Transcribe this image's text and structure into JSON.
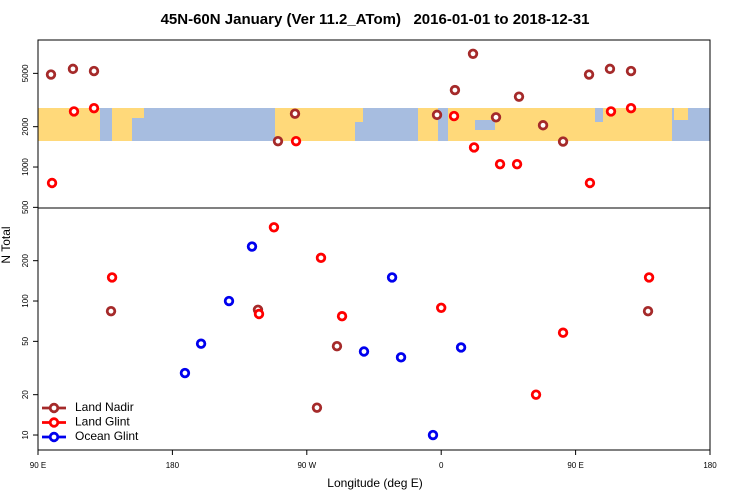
{
  "chart_data": {
    "type": "scatter",
    "title": "45N-60N January (Ver 11.2_ATom)   2016-01-01 to 2018-12-31",
    "xlabel": "Longitude (deg E)",
    "ylabel": "N Total",
    "xlim": [
      -270,
      180
    ],
    "xticks": [
      {
        "value": -270,
        "label": "90 E"
      },
      {
        "value": -180,
        "label": "180"
      },
      {
        "value": -90,
        "label": "90 W"
      },
      0,
      {
        "value": 90,
        "label": "90 E"
      },
      {
        "value": 180,
        "label": "180"
      }
    ],
    "ylim": [
      7.73,
      8870
    ],
    "yscale": "log",
    "yticks": [
      10,
      20,
      50,
      100,
      200,
      500,
      1000,
      2000,
      5000
    ],
    "legend": "lower left",
    "series": [
      {
        "name": "Land Nadir",
        "color": "#a52a2a",
        "x": [
          -261.3,
          -246.6,
          -232.5,
          -221.1,
          -122.7,
          -109.3,
          -97.9,
          -83.2,
          -69.8,
          -2.8,
          9.2,
          21.3,
          36.7,
          52.1,
          68.2,
          81.6,
          99.0,
          113.0,
          127.1,
          138.5
        ],
        "values": [
          4900,
          5400,
          5200,
          84,
          86,
          1560,
          2500,
          16,
          46,
          2450,
          3750,
          7000,
          2350,
          3350,
          2050,
          1550,
          4900,
          5400,
          5200,
          84
        ]
      },
      {
        "name": "Land Glint",
        "color": "#ff0000",
        "x": [
          -260.6,
          -245.9,
          -232.5,
          -220.4,
          -122.0,
          -112.0,
          -97.2,
          -80.5,
          -66.4,
          0,
          8.6,
          22.0,
          39.4,
          50.8,
          63.5,
          81.6,
          99.6,
          113.7,
          127.1,
          139.2
        ],
        "values": [
          760,
          2600,
          2750,
          150,
          80,
          355,
          1560,
          210,
          77,
          89,
          2400,
          1400,
          1050,
          1050,
          20,
          58,
          760,
          2600,
          2750,
          150
        ]
      },
      {
        "name": "Ocean Glint",
        "color": "#0000ee",
        "x": [
          -171.6,
          -160.8,
          -142.1,
          -126.7,
          -51.7,
          -32.9,
          -26.9,
          -5.5,
          13.3
        ],
        "values": [
          29,
          48,
          100,
          255,
          42,
          150,
          38,
          10,
          45
        ]
      }
    ]
  }
}
